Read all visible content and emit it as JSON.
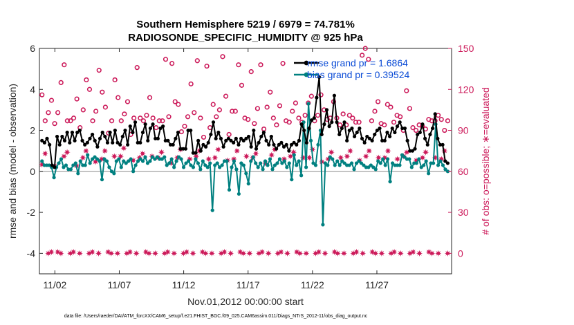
{
  "chart_data": {
    "type": "line",
    "title": "Southern Hemisphere 5219 / 6979 = 74.781%",
    "subtitle": "RADIOSONDE_SPECIFIC_HUMIDITY @ 925 hPa",
    "xlabel": "Nov.01,2012 00:00:00 start",
    "ylabel": "rmse and bias (model - observation)",
    "y2label": "# of obs: o=possible; ∗=evaluated",
    "footer": "data file: /Users/raeder/DAI/ATM_forcXX/CAM6_setup/f.e21.FHIST_BGC.f09_025.CAM6assim.011/Diags_NTrS_2012-11/obs_diag_output.nc",
    "xlim": [
      0.3,
      32.3
    ],
    "ylim": [
      -5,
      6
    ],
    "y2lim": [
      -15,
      150
    ],
    "x_ticks": [
      1.5,
      6.5,
      11.5,
      16.5,
      21.5,
      26.5
    ],
    "x_tick_labels": [
      "11/02",
      "11/07",
      "11/12",
      "11/17",
      "11/22",
      "11/27"
    ],
    "y_ticks": [
      -4,
      -2,
      0,
      2,
      4,
      6
    ],
    "y_tick_labels": [
      "-4",
      "-2",
      "0",
      "2",
      "4",
      "6"
    ],
    "y2_ticks": [
      0,
      30,
      60,
      90,
      120,
      150
    ],
    "y2_tick_labels": [
      "0",
      "30",
      "60",
      "90",
      "120",
      "150"
    ],
    "zero_line": 0,
    "legend": [
      "rmse grand pr = 1.6864",
      "bias grand pr = 0.39524"
    ],
    "legend_position": "top-right",
    "series": [
      {
        "name": "rmse",
        "color": "#000000",
        "values": [
          1.5,
          1.4,
          1.6,
          1.3,
          0.3,
          0.2,
          1.7,
          1.3,
          1.7,
          1.5,
          1.9,
          1.4,
          1.9,
          1.5,
          1.9,
          2.0,
          1.5,
          1.3,
          1.4,
          1.6,
          1.8,
          1.5,
          1.2,
          1.6,
          1.9,
          1.7,
          1.4,
          1.9,
          1.4,
          2.0,
          1.4,
          1.3,
          1.7,
          2.0,
          1.3,
          2.2,
          1.9,
          2.4,
          1.4,
          1.4,
          1.9,
          2.3,
          1.5,
          2.1,
          2.3,
          1.6,
          1.6,
          2.1,
          2.2,
          1.5,
          1.5,
          1.3,
          1.3,
          1.6,
          1.9,
          1.1,
          1.1,
          1.1,
          2.0,
          2.0,
          0.9,
          0.9,
          1.5,
          1.0,
          1.3,
          1.2,
          1.4,
          1.8,
          2.4,
          1.6,
          1.9,
          1.6,
          1.2,
          1.5,
          1.6,
          1.5,
          1.4,
          1.6,
          1.3,
          1.6,
          1.5,
          1.6,
          1.7,
          1.2,
          2.0,
          1.1,
          1.4,
          1.7,
          1.9,
          1.5,
          1.3,
          1.7,
          1.3,
          1.1,
          1.3,
          1.4,
          1.2,
          1.3,
          1.0,
          1.3,
          1.4,
          1.3,
          1.5,
          2.3,
          2.0,
          1.4,
          2.1,
          2.5,
          2.6,
          3.6,
          4.6,
          1.8,
          2.3,
          3.0,
          2.2,
          2.4,
          3.7,
          2.4,
          1.8,
          2.1,
          2.4,
          1.5,
          2.0,
          2.1,
          1.7,
          1.9,
          2.1,
          1.6,
          1.4,
          1.7,
          1.6,
          1.5,
          1.8,
          2.0,
          2.1,
          1.5,
          1.5,
          1.9,
          1.7,
          2.1,
          1.9,
          2.2,
          2.4,
          2.1,
          2.1,
          1.5,
          1.0,
          1.0,
          1.1,
          1.8,
          1.9,
          2.3,
          1.6,
          1.3,
          1.8,
          2.1,
          2.8,
          1.6,
          1.3,
          1.3,
          0.5,
          0.4
        ]
      },
      {
        "name": "bias",
        "color": "#008080",
        "values": [
          0.5,
          0.3,
          0.3,
          0.3,
          0.2,
          -0.3,
          0.2,
          0.4,
          0.6,
          0.2,
          0.3,
          0.1,
          0.1,
          0.3,
          0.4,
          -0.1,
          0.5,
          0.3,
          0.3,
          0.8,
          0.4,
          0.6,
          0.7,
          0.6,
          0.5,
          -0.4,
          0.6,
          0.5,
          0.2,
          0.0,
          -0.1,
          0.5,
          0.6,
          0.2,
          0.5,
          0.4,
          0.5,
          0.6,
          0.0,
          0.3,
          0.5,
          0.6,
          0.5,
          0.7,
          0.4,
          0.5,
          0.7,
          0.6,
          0.7,
          0.6,
          0.6,
          0.7,
          0.3,
          0.4,
          0.6,
          0.2,
          0.5,
          0.7,
          0.6,
          0.2,
          0.4,
          0.5,
          0.3,
          0.2,
          0.6,
          0.4,
          0.1,
          0.5,
          0.3,
          0.2,
          0.4,
          -1.9,
          0.3,
          0.4,
          0.2,
          0.3,
          0.5,
          0.5,
          -0.9,
          0.2,
          0.5,
          0.1,
          -1.1,
          0.4,
          0.3,
          -0.1,
          -0.6,
          0.5,
          0.7,
          0.4,
          0.2,
          0.4,
          0.1,
          0.5,
          0.3,
          0.6,
          0.1,
          0.3,
          0.4,
          0.6,
          0.4,
          0.5,
          0.2,
          0.4,
          -0.4,
          0.8,
          0.3,
          0.5,
          -0.2,
          2.4,
          0.2,
          3.3,
          1.5,
          0.4,
          0.3,
          1.3,
          2.0,
          -2.6,
          0.4,
          0.3,
          0.7,
          0.6,
          0.3,
          0.5,
          0.3,
          0.5,
          0.4,
          0.3,
          0.3,
          0.4,
          0.1,
          0.4,
          0.5,
          0.4,
          0.3,
          0.2,
          0.2,
          0.3,
          0.2,
          0.1,
          0.5,
          0.4,
          0.6,
          0.3,
          0.6,
          -0.5,
          0.4,
          0.3,
          0.3,
          0.3,
          0.8,
          0.7,
          0.6,
          0.6,
          0.2,
          0.4,
          0.4,
          0.6,
          0.2,
          0.3,
          0.5,
          -0.1,
          0.4,
          0.4,
          2.3,
          0.3,
          0.5,
          0.3,
          0.1,
          0.0
        ]
      },
      {
        "name": "obs_possible",
        "color": "#cc1a5a",
        "values": [
          116,
          97,
          103,
          112,
          95,
          103,
          125,
          138,
          97,
          97,
          99,
          113,
          92,
          105,
          127,
          120,
          97,
          104,
          134,
          118,
          107,
          88,
          97,
          127,
          114,
          97,
          102,
          111,
          87,
          99,
          136,
          99,
          97,
          101,
          114,
          99,
          92,
          97,
          97,
          142,
          100,
          139,
          111,
          109,
          89,
          93,
          100,
          124,
          103,
          141,
          99,
          85,
          137,
          92,
          109,
          100,
          105,
          144,
          115,
          87,
          104,
          104,
          138,
          123,
          99,
          98,
          133,
          95,
          106,
          138,
          91,
          107,
          118,
          99,
          94,
          108,
          139,
          97,
          96,
          104,
          110,
          99,
          96,
          101,
          110,
          115,
          97,
          101,
          116,
          105,
          98,
          99,
          111,
          99,
          94,
          102,
          94,
          101,
          99,
          96,
          96,
          145,
          150,
          142,
          97,
          104,
          111,
          95,
          94,
          109,
          107,
          96,
          101,
          100,
          90,
          119,
          106,
          92,
          90,
          94,
          93,
          91,
          98,
          97,
          97,
          101,
          98,
          90,
          97
        ]
      },
      {
        "name": "obs_evaluated",
        "color": "#cc1a5a",
        "values": [
          65,
          73,
          0,
          1,
          64,
          1,
          0,
          71,
          74,
          0,
          1,
          64,
          0,
          70,
          75,
          0,
          1,
          67,
          0,
          69,
          75,
          1,
          0,
          71,
          0,
          71,
          77,
          0,
          1,
          68,
          0,
          70,
          73,
          1,
          0,
          71,
          0,
          70,
          74,
          0,
          1,
          66,
          0,
          70,
          76,
          0,
          1,
          69,
          0,
          71,
          75,
          1,
          0,
          69,
          0,
          70,
          76,
          0,
          1,
          68,
          0,
          69,
          75,
          1,
          0,
          71,
          0,
          70,
          73,
          0,
          1,
          66,
          0,
          72,
          76,
          0,
          1,
          69,
          0,
          71,
          74,
          1,
          0,
          70,
          0,
          70,
          76,
          0,
          1,
          67,
          0,
          69,
          74,
          1,
          0,
          70,
          0,
          71,
          75,
          0,
          1,
          68,
          0,
          71,
          75,
          1,
          0,
          70,
          0,
          70,
          75,
          0,
          1,
          69,
          0,
          71,
          74,
          0,
          1,
          68,
          0,
          70,
          74,
          1,
          0,
          70,
          0,
          69,
          75,
          0
        ]
      }
    ]
  }
}
